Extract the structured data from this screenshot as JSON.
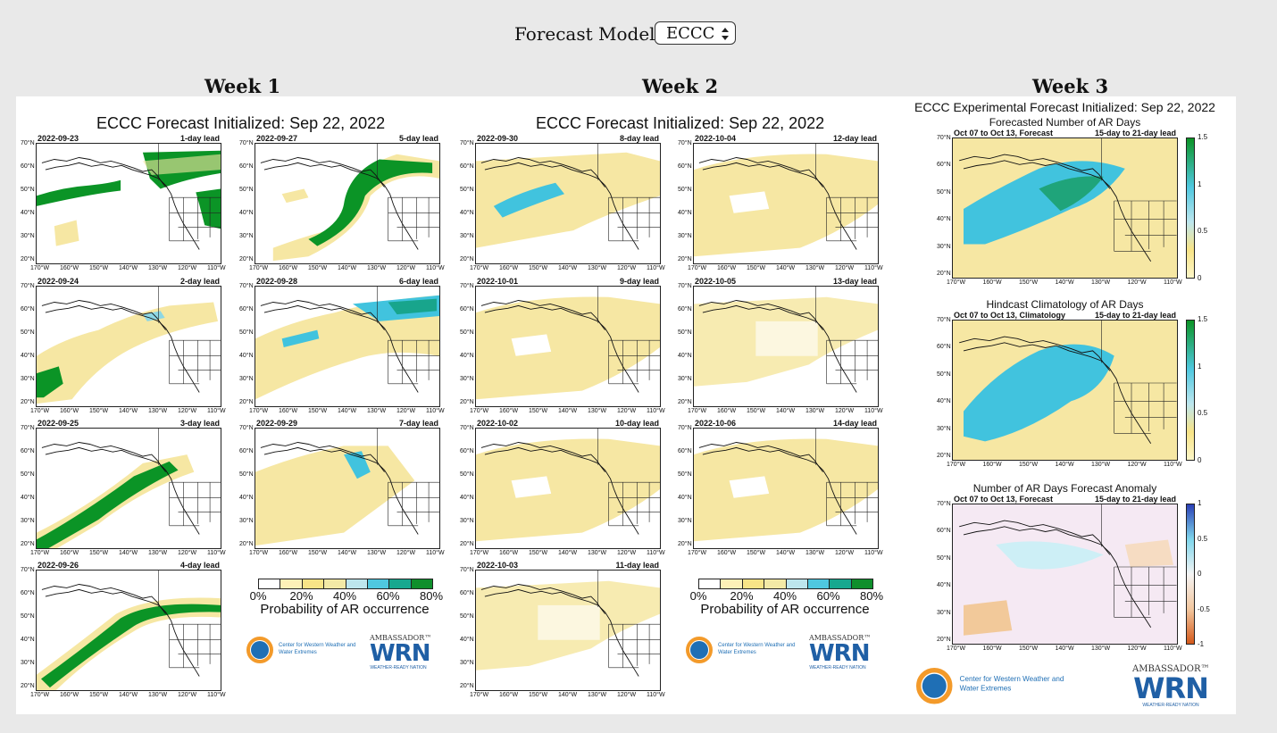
{
  "forecast_model": {
    "label": "Forecast Model:",
    "selected": "ECCC"
  },
  "weeks": [
    "Week 1",
    "Week 2",
    "Week 3"
  ],
  "init_title": "ECCC Forecast Initialized: Sep 22, 2022",
  "lat_labels": [
    "70°N",
    "60°N",
    "50°N",
    "40°N",
    "30°N",
    "20°N"
  ],
  "lon_labels": [
    "170°W",
    "160°W",
    "150°W",
    "140°W",
    "130°W",
    "120°W",
    "110°W"
  ],
  "legend": {
    "ticks": [
      "0%",
      "20%",
      "40%",
      "60%",
      "80%"
    ],
    "title": "Probability of AR occurrence",
    "colors": [
      "#ffffff",
      "#fdf1b8",
      "#f8e487",
      "#f3e9a6",
      "#bde6ee",
      "#4fc8e0",
      "#17a88f",
      "#0f8f2c"
    ]
  },
  "week1_maps": [
    {
      "date": "2022-09-23",
      "lead": "1-day lead",
      "theme": "green-n"
    },
    {
      "date": "2022-09-27",
      "lead": "5-day lead",
      "theme": "green-arc"
    },
    {
      "date": "2022-09-24",
      "lead": "2-day lead",
      "theme": "yellow-sw"
    },
    {
      "date": "2022-09-28",
      "lead": "6-day lead",
      "theme": "teal-n"
    },
    {
      "date": "2022-09-25",
      "lead": "3-day lead",
      "theme": "green-diag"
    },
    {
      "date": "2022-09-29",
      "lead": "7-day lead",
      "theme": "yellow-teal"
    },
    {
      "date": "2022-09-26",
      "lead": "4-day lead",
      "theme": "green-diag2"
    }
  ],
  "week2_maps": [
    {
      "date": "2022-09-30",
      "lead": "8-day lead",
      "theme": "yellow-cyan"
    },
    {
      "date": "2022-10-04",
      "lead": "12-day lead",
      "theme": "yellow"
    },
    {
      "date": "2022-10-01",
      "lead": "9-day lead",
      "theme": "yellow"
    },
    {
      "date": "2022-10-05",
      "lead": "13-day lead",
      "theme": "yellow-light"
    },
    {
      "date": "2022-10-02",
      "lead": "10-day lead",
      "theme": "yellow"
    },
    {
      "date": "2022-10-06",
      "lead": "14-day lead",
      "theme": "yellow"
    },
    {
      "date": "2022-10-03",
      "lead": "11-day lead",
      "theme": "yellow-light"
    }
  ],
  "week3": {
    "title": "ECCC Experimental Forecast Initialized: Sep 22, 2022",
    "panels": [
      {
        "subtitle": "Forecasted Number of AR Days",
        "left": "Oct 07 to Oct 13, Forecast",
        "right": "15-day to 21-day lead",
        "cbar_ticks": [
          "1.5",
          "1",
          "0.5",
          "0"
        ],
        "theme": "fcst"
      },
      {
        "subtitle": "Hindcast Climatology of AR Days",
        "left": "Oct 07 to Oct 13, Climatology",
        "right": "15-day to 21-day lead",
        "cbar_ticks": [
          "1.5",
          "1",
          "0.5",
          "0"
        ],
        "theme": "clim"
      },
      {
        "subtitle": "Number of AR Days Forecast Anomaly",
        "left": "Oct 07 to Oct 13, Forecast",
        "right": "15-day to 21-day lead",
        "cbar_ticks": [
          "1",
          "0.5",
          "0",
          "-0.5",
          "-1"
        ],
        "theme": "anom"
      }
    ]
  },
  "logos": {
    "cw3e": "Center for Western Weather and Water Extremes",
    "wrn_top": "AMBASSADOR™",
    "wrn_main": "WRN",
    "wrn_bottom": "WEATHER-READY NATION"
  }
}
